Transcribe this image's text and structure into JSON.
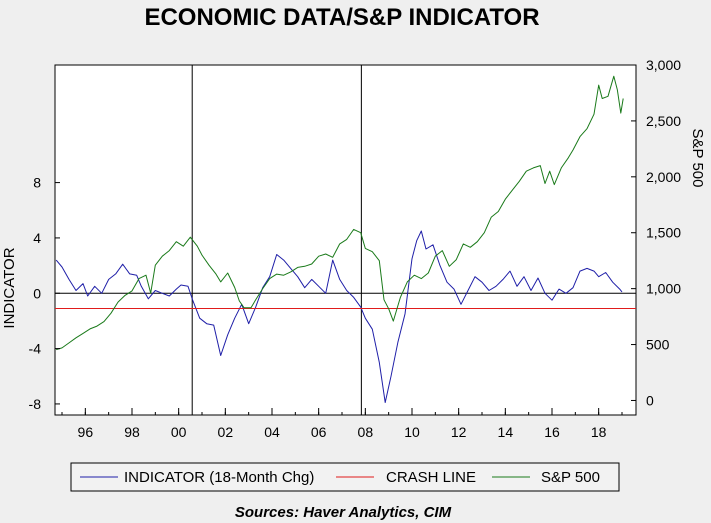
{
  "chart_data": {
    "type": "line",
    "title": "ECONOMIC DATA/S&P INDICATOR",
    "ylabel_left": "INDICATOR",
    "ylabel_right": "S&P 500",
    "source": "Sources:  Haver Analytics, CIM",
    "x_tick_labels": [
      "96",
      "98",
      "00",
      "02",
      "04",
      "06",
      "08",
      "10",
      "12",
      "14",
      "16",
      "18"
    ],
    "x_tick_years": [
      1996,
      1998,
      2000,
      2002,
      2004,
      2006,
      2008,
      2010,
      2012,
      2014,
      2016,
      2018
    ],
    "xlim": [
      1994.7,
      2019.6
    ],
    "y_left": {
      "ticks": [
        8,
        4,
        0,
        -4,
        -8
      ],
      "tick_labels": [
        "8",
        "4",
        "0",
        "-4",
        "-8"
      ],
      "ylim": [
        -8.8,
        16.5
      ]
    },
    "y_right": {
      "ticks": [
        0,
        500,
        1000,
        1500,
        2000,
        2500,
        3000
      ],
      "tick_labels": [
        "0",
        "500",
        "1,000",
        "1,500",
        "2,000",
        "2,500",
        "3,000"
      ],
      "ylim": [
        -130,
        3000
      ]
    },
    "vertical_lines_x": [
      2000.58,
      2007.83
    ],
    "zero_line_y": 0,
    "grid": false,
    "legend_position": "bottom",
    "series": [
      {
        "name": "INDICATOR (18-Month Chg)",
        "axis": "left",
        "color": "#1f1fa8",
        "points": [
          [
            1994.75,
            2.4
          ],
          [
            1995.0,
            1.9
          ],
          [
            1995.3,
            1.0
          ],
          [
            1995.6,
            0.2
          ],
          [
            1995.9,
            0.7
          ],
          [
            1996.1,
            -0.2
          ],
          [
            1996.4,
            0.5
          ],
          [
            1996.7,
            0.0
          ],
          [
            1997.0,
            1.0
          ],
          [
            1997.3,
            1.4
          ],
          [
            1997.6,
            2.1
          ],
          [
            1997.9,
            1.4
          ],
          [
            1998.2,
            1.3
          ],
          [
            1998.4,
            0.5
          ],
          [
            1998.7,
            -0.4
          ],
          [
            1999.0,
            0.2
          ],
          [
            1999.3,
            0.0
          ],
          [
            1999.6,
            -0.2
          ],
          [
            1999.9,
            0.3
          ],
          [
            2000.1,
            0.6
          ],
          [
            2000.4,
            0.5
          ],
          [
            2000.6,
            -0.5
          ],
          [
            2000.9,
            -1.8
          ],
          [
            2001.2,
            -2.2
          ],
          [
            2001.5,
            -2.3
          ],
          [
            2001.8,
            -4.5
          ],
          [
            2002.1,
            -3.0
          ],
          [
            2002.4,
            -1.8
          ],
          [
            2002.7,
            -0.8
          ],
          [
            2003.0,
            -2.2
          ],
          [
            2003.3,
            -1.0
          ],
          [
            2003.6,
            0.4
          ],
          [
            2003.9,
            1.2
          ],
          [
            2004.2,
            2.8
          ],
          [
            2004.5,
            2.4
          ],
          [
            2004.8,
            1.8
          ],
          [
            2005.1,
            1.2
          ],
          [
            2005.4,
            0.4
          ],
          [
            2005.7,
            1.0
          ],
          [
            2006.0,
            0.5
          ],
          [
            2006.3,
            0.0
          ],
          [
            2006.6,
            2.4
          ],
          [
            2006.9,
            1.0
          ],
          [
            2007.2,
            0.2
          ],
          [
            2007.5,
            -0.3
          ],
          [
            2007.8,
            -1.0
          ],
          [
            2008.0,
            -1.8
          ],
          [
            2008.3,
            -2.6
          ],
          [
            2008.6,
            -5.0
          ],
          [
            2008.85,
            -7.9
          ],
          [
            2009.1,
            -6.0
          ],
          [
            2009.4,
            -3.5
          ],
          [
            2009.7,
            -1.5
          ],
          [
            2010.0,
            2.5
          ],
          [
            2010.2,
            3.8
          ],
          [
            2010.4,
            4.5
          ],
          [
            2010.6,
            3.2
          ],
          [
            2010.9,
            3.5
          ],
          [
            2011.2,
            2.0
          ],
          [
            2011.5,
            0.8
          ],
          [
            2011.8,
            0.3
          ],
          [
            2012.1,
            -0.8
          ],
          [
            2012.4,
            0.2
          ],
          [
            2012.7,
            1.2
          ],
          [
            2013.0,
            0.8
          ],
          [
            2013.3,
            0.2
          ],
          [
            2013.6,
            0.5
          ],
          [
            2013.9,
            1.0
          ],
          [
            2014.2,
            1.6
          ],
          [
            2014.5,
            0.5
          ],
          [
            2014.8,
            1.2
          ],
          [
            2015.1,
            0.2
          ],
          [
            2015.4,
            1.1
          ],
          [
            2015.7,
            0.0
          ],
          [
            2016.0,
            -0.5
          ],
          [
            2016.3,
            0.3
          ],
          [
            2016.6,
            0.0
          ],
          [
            2016.9,
            0.4
          ],
          [
            2017.2,
            1.6
          ],
          [
            2017.5,
            1.8
          ],
          [
            2017.8,
            1.6
          ],
          [
            2018.0,
            1.2
          ],
          [
            2018.3,
            1.5
          ],
          [
            2018.6,
            0.8
          ],
          [
            2018.9,
            0.3
          ],
          [
            2019.0,
            0.1
          ]
        ]
      },
      {
        "name": "CRASH LINE",
        "axis": "left",
        "color": "#e01b1b",
        "points": [
          [
            1994.7,
            -1.1
          ],
          [
            2019.6,
            -1.1
          ]
        ]
      },
      {
        "name": "S&P 500",
        "axis": "right",
        "color": "#1a7a1a",
        "points": [
          [
            1994.75,
            455
          ],
          [
            1995.0,
            470
          ],
          [
            1995.3,
            515
          ],
          [
            1995.6,
            560
          ],
          [
            1995.9,
            600
          ],
          [
            1996.2,
            640
          ],
          [
            1996.5,
            665
          ],
          [
            1996.8,
            705
          ],
          [
            1997.1,
            780
          ],
          [
            1997.4,
            880
          ],
          [
            1997.7,
            940
          ],
          [
            1998.0,
            980
          ],
          [
            1998.3,
            1090
          ],
          [
            1998.6,
            1120
          ],
          [
            1998.8,
            960
          ],
          [
            1999.0,
            1210
          ],
          [
            1999.3,
            1290
          ],
          [
            1999.6,
            1340
          ],
          [
            1999.9,
            1420
          ],
          [
            2000.2,
            1380
          ],
          [
            2000.5,
            1460
          ],
          [
            2000.8,
            1380
          ],
          [
            2001.0,
            1300
          ],
          [
            2001.3,
            1210
          ],
          [
            2001.6,
            1130
          ],
          [
            2001.8,
            1060
          ],
          [
            2002.1,
            1140
          ],
          [
            2002.4,
            1010
          ],
          [
            2002.6,
            890
          ],
          [
            2002.8,
            830
          ],
          [
            2003.1,
            830
          ],
          [
            2003.3,
            900
          ],
          [
            2003.6,
            1000
          ],
          [
            2003.9,
            1090
          ],
          [
            2004.2,
            1130
          ],
          [
            2004.5,
            1120
          ],
          [
            2004.8,
            1150
          ],
          [
            2005.1,
            1190
          ],
          [
            2005.4,
            1200
          ],
          [
            2005.7,
            1220
          ],
          [
            2006.0,
            1290
          ],
          [
            2006.3,
            1310
          ],
          [
            2006.6,
            1280
          ],
          [
            2006.9,
            1400
          ],
          [
            2007.2,
            1440
          ],
          [
            2007.5,
            1530
          ],
          [
            2007.8,
            1500
          ],
          [
            2008.0,
            1360
          ],
          [
            2008.3,
            1330
          ],
          [
            2008.6,
            1250
          ],
          [
            2008.8,
            900
          ],
          [
            2009.0,
            820
          ],
          [
            2009.2,
            710
          ],
          [
            2009.5,
            920
          ],
          [
            2009.8,
            1060
          ],
          [
            2010.1,
            1120
          ],
          [
            2010.4,
            1090
          ],
          [
            2010.7,
            1140
          ],
          [
            2011.0,
            1290
          ],
          [
            2011.3,
            1340
          ],
          [
            2011.6,
            1200
          ],
          [
            2011.9,
            1260
          ],
          [
            2012.2,
            1400
          ],
          [
            2012.5,
            1370
          ],
          [
            2012.8,
            1420
          ],
          [
            2013.1,
            1500
          ],
          [
            2013.4,
            1640
          ],
          [
            2013.7,
            1690
          ],
          [
            2014.0,
            1800
          ],
          [
            2014.3,
            1880
          ],
          [
            2014.6,
            1960
          ],
          [
            2014.9,
            2050
          ],
          [
            2015.2,
            2080
          ],
          [
            2015.5,
            2100
          ],
          [
            2015.7,
            1940
          ],
          [
            2015.9,
            2050
          ],
          [
            2016.1,
            1930
          ],
          [
            2016.4,
            2080
          ],
          [
            2016.7,
            2170
          ],
          [
            2016.9,
            2240
          ],
          [
            2017.2,
            2360
          ],
          [
            2017.5,
            2430
          ],
          [
            2017.8,
            2560
          ],
          [
            2018.0,
            2820
          ],
          [
            2018.15,
            2700
          ],
          [
            2018.4,
            2720
          ],
          [
            2018.65,
            2900
          ],
          [
            2018.8,
            2780
          ],
          [
            2018.95,
            2570
          ],
          [
            2019.05,
            2700
          ]
        ]
      }
    ]
  }
}
